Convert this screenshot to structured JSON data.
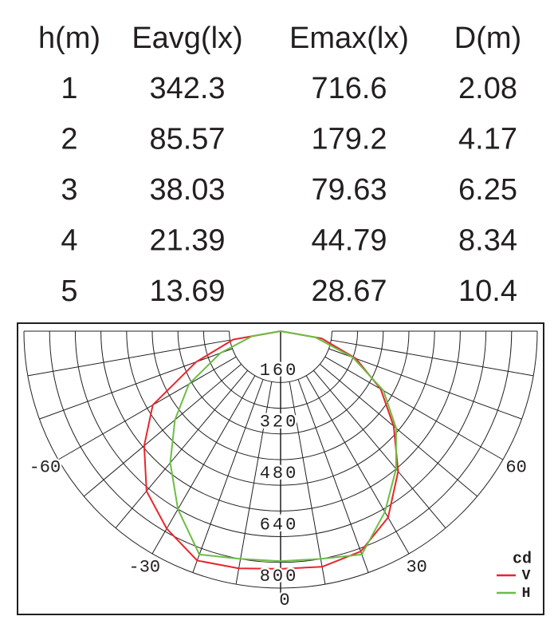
{
  "table": {
    "header": [
      "h(m)",
      "Eavg(lx)",
      "Emax(lx)",
      "D(m)"
    ],
    "rows": [
      [
        1,
        342.3,
        716.6,
        2.08
      ],
      [
        2,
        85.57,
        179.2,
        4.17
      ],
      [
        3,
        38.03,
        79.63,
        6.25
      ],
      [
        4,
        21.39,
        44.79,
        8.34
      ],
      [
        5,
        13.69,
        28.67,
        10.4
      ]
    ]
  },
  "chart_data": {
    "type": "polar",
    "unit": "cd",
    "angles": [
      -90,
      -80,
      -70,
      -60,
      -50,
      -40,
      -30,
      -20,
      -10,
      0,
      10,
      20,
      30,
      40,
      50,
      60,
      70,
      80,
      90
    ],
    "series": [
      {
        "name": "V",
        "color": "#e8262b",
        "values": [
          0,
          150,
          280,
          460,
          555,
          650,
          710,
          760,
          750,
          740,
          745,
          730,
          670,
          570,
          460,
          360,
          250,
          130,
          0
        ]
      },
      {
        "name": "H",
        "color": "#6cbd45",
        "values": [
          0,
          90,
          200,
          330,
          430,
          535,
          640,
          740,
          720,
          716,
          720,
          740,
          650,
          560,
          470,
          370,
          240,
          110,
          0
        ]
      }
    ],
    "rlim": [
      0,
      800
    ],
    "rticks": [
      160,
      320,
      480,
      640,
      800
    ],
    "rminor": [
      240,
      400,
      560,
      720
    ],
    "angle_ticks": [
      -60,
      -30,
      0,
      30,
      60
    ]
  }
}
